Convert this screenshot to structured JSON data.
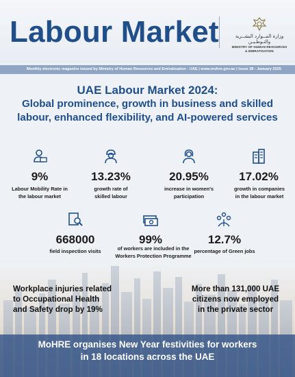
{
  "header": {
    "title": "Labour Market",
    "ministry_ar": "وزارة المــوارد البشــرية والتـوطـيـن",
    "ministry_en_1": "MINISTRY OF HUMAN RESOURCES",
    "ministry_en_2": "& EMIRATISATION"
  },
  "info_band": {
    "text": "Monthly electronic magazine issued by Ministry of Human Resources and Emiratisation - UAE  |  www.mohre.gov.ae  |  Issue 38 - January 2025"
  },
  "headline": {
    "line1": "UAE Labour Market 2024:",
    "line2": "Global prominence, growth in business and skilled",
    "line3": "labour, enhanced flexibility, and AI-powered services"
  },
  "stats": [
    {
      "icon": "person-laptop-icon",
      "value": "9%",
      "label1": "Labour Mobility Rate in",
      "label2": "the labour market"
    },
    {
      "icon": "skilled-worker-icon",
      "value": "13.23%",
      "label1": "growth rate of",
      "label2": "skilled labour"
    },
    {
      "icon": "woman-icon",
      "value": "20.95%",
      "label1": "increase in women's",
      "label2": "participation"
    },
    {
      "icon": "buildings-icon",
      "value": "17.02%",
      "label1": "growth in companies",
      "label2": "in the labour market"
    },
    {
      "icon": "inspection-icon",
      "value": "668000",
      "label1": "field inspection visits",
      "label2": ""
    },
    {
      "icon": "money-icon",
      "value": "99%",
      "label1": "of workers are included in the",
      "label2": "Workers Protection Programme"
    },
    {
      "icon": "green-jobs-icon",
      "value": "12.7%",
      "label1": "percentage of Green jobs",
      "label2": ""
    }
  ],
  "stories": {
    "left": {
      "line1": "Workplace injuries related",
      "line2": "to Occupational Health",
      "line3": "and Safety drop by 19%"
    },
    "right": {
      "line1": "More than 131,000 UAE",
      "line2": "citizens now employed",
      "line3": "in the private sector"
    }
  },
  "banner": {
    "line1": "MoHRE organises New Year festivities for workers",
    "line2": "in 18 locations across the UAE"
  },
  "colors": {
    "brand_blue": "#1f4e88",
    "band": "#8ea6c4",
    "banner": "#345687"
  }
}
